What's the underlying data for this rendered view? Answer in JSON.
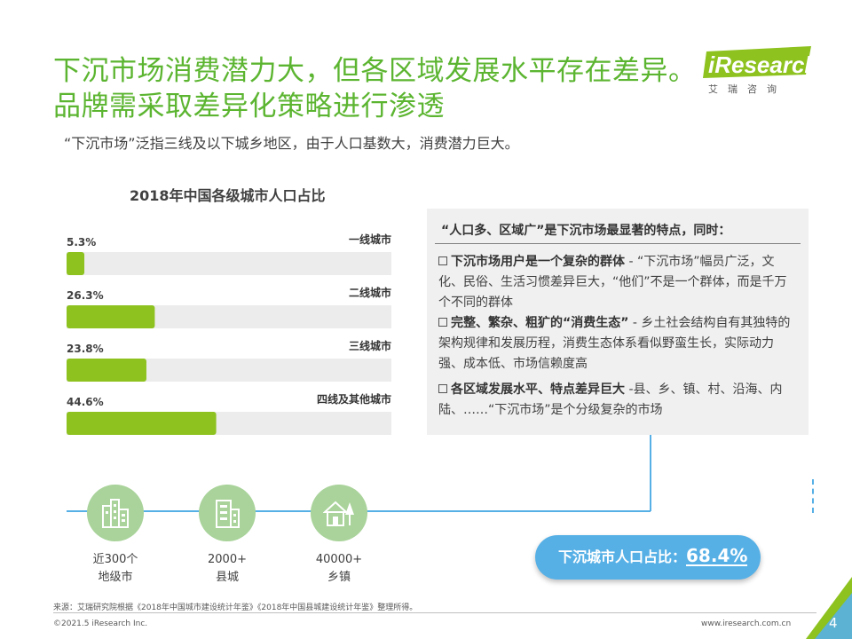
{
  "header": {
    "title_line1": "下沉市场消费潜力大，但各区域发展水平存在差异。",
    "title_line2": "品牌需采取差异化策略进行渗透",
    "subtitle": "“下沉市场”泛指三线及以下城乡地区，由于人口基数大，消费潜力巨大。"
  },
  "logo": {
    "word": "iResearch",
    "sub": "艾瑞咨询"
  },
  "colors": {
    "accent_green": "#5cb531",
    "bar_green": "#8dc21f",
    "blue": "#56b0e6",
    "circle_green": "#a9d39a"
  },
  "chart_data": {
    "type": "bar",
    "orientation": "horizontal",
    "title": "2018年中国各级城市人口占比",
    "categories": [
      "一线城市",
      "二线城市",
      "三线城市",
      "四线及其他城市"
    ],
    "values": [
      5.3,
      26.3,
      23.8,
      44.6
    ],
    "value_labels": [
      "5.3%",
      "26.3%",
      "23.8%",
      "44.6%"
    ],
    "xlim": [
      0,
      100
    ],
    "unit": "%"
  },
  "notes": {
    "heading": "“人口多、区域广”是下沉市场最显著的特点，同时：",
    "items": [
      {
        "bold": "下沉市场用户是一个复杂的群体",
        "text": " - “下沉市场”幅员广泛，文化、民俗、生活习惯差异巨大，“他们”不是一个群体，而是千万个不同的群体"
      },
      {
        "bold": "完整、繁杂、粗犷的“消费生态”",
        "text": " - 乡土社会结构自有其独特的架构规律和发展历程，消费生态体系看似野蛮生长，实际动力强、成本低、市场信赖度高"
      },
      {
        "bold": "各区域发展水平、特点差异巨大",
        "text": " -县、乡、镇、村、沿海、内陆、……“下沉市场”是个分级复杂的市场"
      }
    ]
  },
  "stats": [
    {
      "icon": "city-buildings-icon",
      "line1": "近300个",
      "line2": "地级市"
    },
    {
      "icon": "office-building-icon",
      "line1": "2000+",
      "line2": "县城"
    },
    {
      "icon": "house-tree-icon",
      "line1": "40000+",
      "line2": "乡镇"
    }
  ],
  "highlight": {
    "label": "下沉城市人口占比：",
    "value": "68.4%"
  },
  "footer": {
    "source": "来源：艾瑞研究院根据《2018年中国城市建设统计年鉴》《2018年中国县城建设统计年鉴》整理所得。",
    "copyright": "©2021.5 iResearch Inc.",
    "url": "www.iresearch.com.cn",
    "page": "4"
  }
}
